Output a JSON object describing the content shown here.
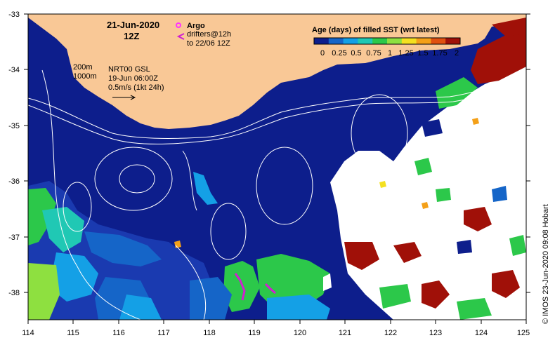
{
  "map": {
    "date": "21-Jun-2020",
    "hour": "12Z",
    "product": "NRT00 GSL",
    "product_time": "19-Jun 06:00Z",
    "vector_scale": "0.5m/s (1kt 24h)",
    "isobath_1": "200m",
    "isobath_2": "1000m",
    "credit": "© IMOS 23-Jun-2020 09:08 Hobart",
    "colors": {
      "land": "#f9c896",
      "ocean_deep": "#0d1e8c",
      "missing": "#ffffff",
      "contour": "#ffffff"
    }
  },
  "legend": {
    "argo_label": "Argo",
    "drifters_label_1": "drifters@12h",
    "drifters_label_2": "to 22/06 12Z",
    "colorbar_title": "Age (days) of filled SST (wrt latest)",
    "colorbar_ticks": [
      "0",
      "0.25",
      "0.5",
      "0.75",
      "1",
      "1.25",
      "1.5",
      "1.75",
      "2"
    ],
    "colorbar_colors": [
      "#0d1e8c",
      "#1565c8",
      "#14a0e6",
      "#20c8b4",
      "#2cc84a",
      "#8ee040",
      "#f4e020",
      "#f4a018",
      "#e05010",
      "#a01008"
    ],
    "argo_color": "#ff33ff",
    "drifter_color": "#d020d0"
  },
  "axes": {
    "x_ticks": [
      "114",
      "115",
      "116",
      "117",
      "118",
      "119",
      "120",
      "121",
      "122",
      "123",
      "124",
      "125"
    ],
    "y_ticks": [
      "-33",
      "-34",
      "-35",
      "-36",
      "-37",
      "-38"
    ]
  }
}
